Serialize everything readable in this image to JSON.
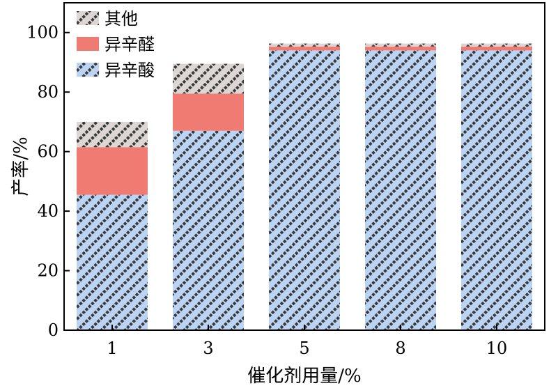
{
  "chart_data": {
    "type": "bar",
    "stacked": true,
    "xlabel": "催化剂用量/%",
    "ylabel": "产率/%",
    "ylim": [
      0,
      110
    ],
    "yticks": [
      0,
      20,
      40,
      60,
      80,
      100
    ],
    "categories": [
      "1",
      "3",
      "5",
      "8",
      "10"
    ],
    "grid": false,
    "legend_position": "top-left",
    "legend_order": [
      2,
      1,
      0
    ],
    "series": [
      {
        "name": "异辛酸",
        "values": [
          45.5,
          67.0,
          94.0,
          94.0,
          94.0
        ],
        "color": "#bcd4f4",
        "pattern": "dark-diagonal-dots"
      },
      {
        "name": "异辛醛",
        "values": [
          16.0,
          12.5,
          1.3,
          1.3,
          1.3
        ],
        "color": "#ef7b72",
        "pattern": "none"
      },
      {
        "name": "其他",
        "values": [
          8.5,
          10.0,
          1.0,
          1.0,
          1.0
        ],
        "color": "#dcd7d4",
        "pattern": "dark-diagonal-dots"
      }
    ]
  }
}
